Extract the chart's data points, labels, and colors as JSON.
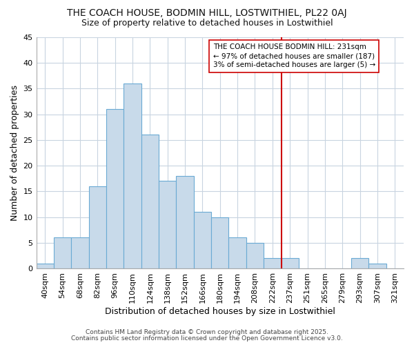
{
  "title": "THE COACH HOUSE, BODMIN HILL, LOSTWITHIEL, PL22 0AJ",
  "subtitle": "Size of property relative to detached houses in Lostwithiel",
  "xlabel": "Distribution of detached houses by size in Lostwithiel",
  "ylabel": "Number of detached properties",
  "bin_labels": [
    "40sqm",
    "54sqm",
    "68sqm",
    "82sqm",
    "96sqm",
    "110sqm",
    "124sqm",
    "138sqm",
    "152sqm",
    "166sqm",
    "180sqm",
    "194sqm",
    "208sqm",
    "222sqm",
    "237sqm",
    "251sqm",
    "265sqm",
    "279sqm",
    "293sqm",
    "307sqm",
    "321sqm"
  ],
  "values": [
    1,
    6,
    6,
    16,
    31,
    36,
    26,
    17,
    18,
    11,
    10,
    6,
    5,
    2,
    2,
    0,
    0,
    0,
    2,
    1,
    0
  ],
  "bar_color": "#c8daea",
  "bar_edge_color": "#6aaad4",
  "grid_color": "#c8d4e0",
  "background_color": "#ffffff",
  "vline_x_idx": 14,
  "vline_color": "#cc0000",
  "annotation_line1": "THE COACH HOUSE BODMIN HILL: 231sqm",
  "annotation_line2": "← 97% of detached houses are smaller (187)",
  "annotation_line3": "3% of semi-detached houses are larger (5) →",
  "annotation_box_color": "#ffffff",
  "annotation_box_edge": "#cc0000",
  "footer1": "Contains HM Land Registry data © Crown copyright and database right 2025.",
  "footer2": "Contains public sector information licensed under the Open Government Licence v3.0.",
  "ylim": [
    0,
    45
  ],
  "yticks": [
    0,
    5,
    10,
    15,
    20,
    25,
    30,
    35,
    40,
    45
  ],
  "title_fontsize": 10,
  "subtitle_fontsize": 9,
  "axis_label_fontsize": 9,
  "tick_fontsize": 8,
  "annotation_fontsize": 7.5,
  "footer_fontsize": 6.5
}
